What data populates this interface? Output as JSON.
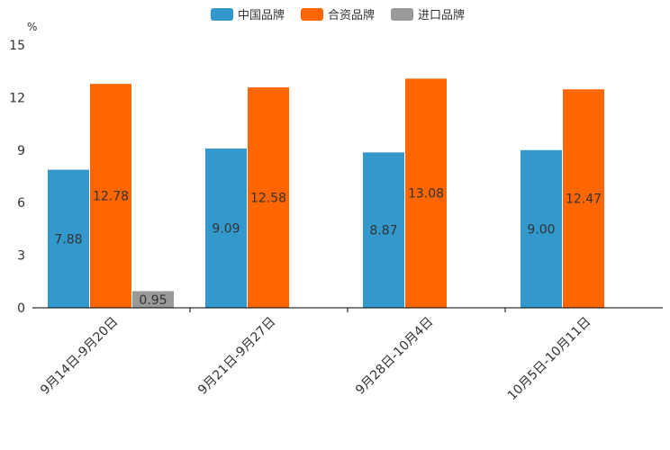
{
  "chart_data": {
    "type": "bar",
    "title": "",
    "unit_label": "%",
    "xlabel": "",
    "ylabel": "%",
    "ylim": [
      0,
      15
    ],
    "yticks": [
      0,
      3,
      6,
      9,
      12,
      15
    ],
    "grid": false,
    "legend_position": "top-center",
    "categories": [
      "9月14日-9月20日",
      "9月21日-9月27日",
      "9月28日-10月4日",
      "10月5日-10月11日"
    ],
    "series": [
      {
        "name": "中国品牌",
        "color": "#3399cc",
        "values": [
          7.88,
          9.09,
          8.87,
          9.0
        ],
        "labels": [
          "7.88",
          "9.09",
          "8.87",
          "9.00"
        ]
      },
      {
        "name": "合资品牌",
        "color": "#ff6600",
        "values": [
          12.78,
          12.58,
          13.08,
          12.47
        ],
        "labels": [
          "12.78",
          "12.58",
          "13.08",
          "12.47"
        ]
      },
      {
        "name": "进口品牌",
        "color": "#999999",
        "values": [
          0.95,
          null,
          null,
          null
        ],
        "labels": [
          "0.95",
          null,
          null,
          null
        ]
      }
    ]
  }
}
